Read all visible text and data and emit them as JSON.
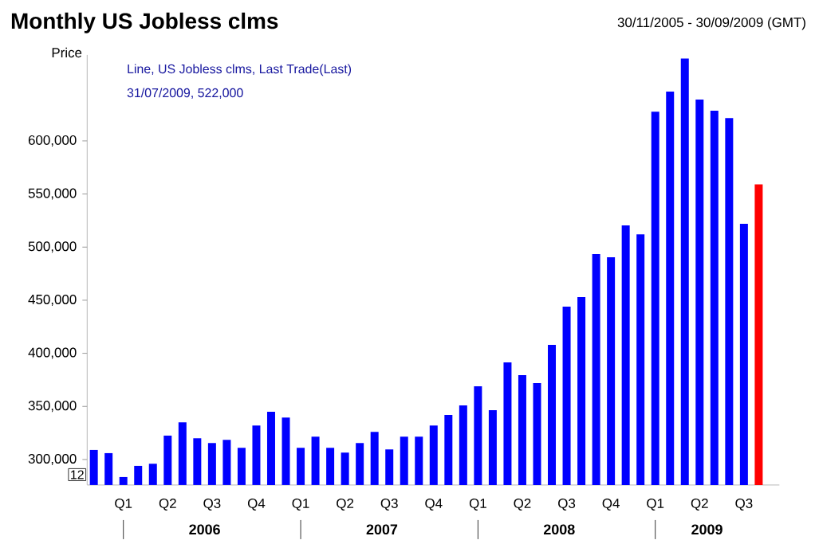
{
  "chart_data": {
    "type": "bar",
    "title": "Monthly US Jobless clms",
    "subtitle": "30/11/2005 - 30/09/2009 (GMT)",
    "ylabel": "Price",
    "annotations": [
      "Line, US Jobless clms, Last Trade(Last)",
      "31/07/2009, 522,000",
      "12",
      "2006",
      "2007",
      "2008",
      "2009"
    ],
    "categories": [
      null,
      null,
      "Q1",
      null,
      null,
      "Q2",
      null,
      null,
      "Q3",
      null,
      null,
      "Q4",
      null,
      null,
      "Q1",
      null,
      null,
      "Q2",
      null,
      null,
      "Q3",
      null,
      null,
      "Q4",
      null,
      null,
      "Q1",
      null,
      null,
      "Q2",
      null,
      null,
      "Q3",
      null,
      null,
      "Q4",
      null,
      null,
      "Q1",
      null,
      null,
      "Q2",
      null,
      null,
      "Q3",
      null
    ],
    "values": [
      309000,
      306000,
      283500,
      294000,
      296000,
      322500,
      335000,
      320000,
      315500,
      318500,
      311000,
      332000,
      345000,
      339500,
      311000,
      321500,
      311000,
      306500,
      315500,
      326000,
      309500,
      321500,
      321500,
      332000,
      342000,
      351000,
      369000,
      346500,
      391500,
      379500,
      372000,
      408000,
      444000,
      453000,
      493500,
      490500,
      520500,
      512000,
      627500,
      646500,
      677500,
      639000,
      628500,
      621500,
      522000,
      559000
    ],
    "colors": [
      "#0000ff",
      "#0000ff",
      "#0000ff",
      "#0000ff",
      "#0000ff",
      "#0000ff",
      "#0000ff",
      "#0000ff",
      "#0000ff",
      "#0000ff",
      "#0000ff",
      "#0000ff",
      "#0000ff",
      "#0000ff",
      "#0000ff",
      "#0000ff",
      "#0000ff",
      "#0000ff",
      "#0000ff",
      "#0000ff",
      "#0000ff",
      "#0000ff",
      "#0000ff",
      "#0000ff",
      "#0000ff",
      "#0000ff",
      "#0000ff",
      "#0000ff",
      "#0000ff",
      "#0000ff",
      "#0000ff",
      "#0000ff",
      "#0000ff",
      "#0000ff",
      "#0000ff",
      "#0000ff",
      "#0000ff",
      "#0000ff",
      "#0000ff",
      "#0000ff",
      "#0000ff",
      "#0000ff",
      "#0000ff",
      "#0000ff",
      "#0000ff",
      "#ff0000"
    ],
    "ylim": [
      276000,
      681000
    ],
    "yticks": [
      {
        "value": 300000,
        "label": "300,000"
      },
      {
        "value": 350000,
        "label": "350,000"
      },
      {
        "value": 400000,
        "label": "400,000"
      },
      {
        "value": 450000,
        "label": "450,000"
      },
      {
        "value": 500000,
        "label": "500,000"
      },
      {
        "value": 550000,
        "label": "550,000"
      },
      {
        "value": 600000,
        "label": "600,000"
      }
    ],
    "grid": false
  }
}
